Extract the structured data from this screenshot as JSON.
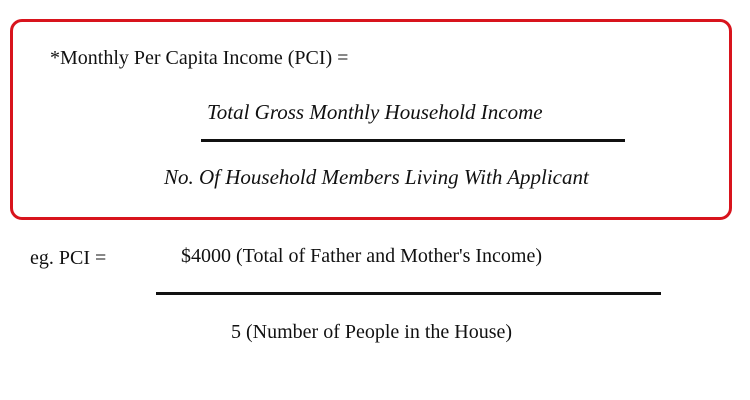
{
  "definition": {
    "label": "*Monthly Per Capita Income (PCI) =",
    "numerator": "Total Gross Monthly Household Income",
    "denominator": "No. Of Household Members Living With Applicant",
    "border_color": "#d8141d"
  },
  "example": {
    "label": "eg. PCI =",
    "numerator": "$4000 (Total of Father and Mother's Income)",
    "denominator": "5 (Number of People in the House)"
  }
}
